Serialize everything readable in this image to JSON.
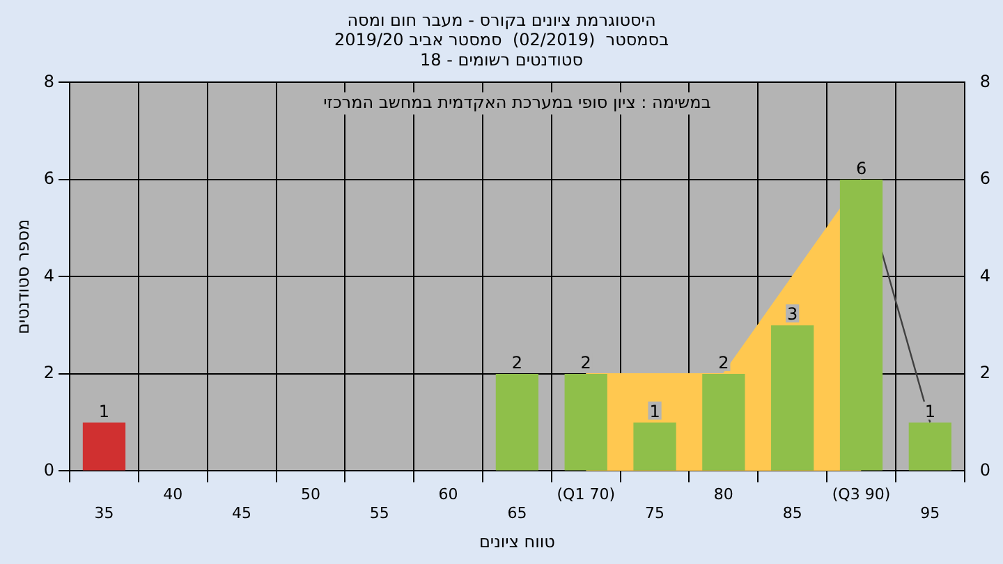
{
  "chart_data": {
    "type": "bar",
    "title": "היסטוגרמת ציונים בקורס - מעבר חום ומסה",
    "subtitle": "בסמסטר  (02/2019)  סמסטר אביב 2019/20\nסטודנטים רשומים - 18",
    "xlabel": "טווח ציונים",
    "ylabel": "מספר סטודנטים",
    "annotations": [
      "במשימה : ציון סופי במערכת האקדמית במחשב המרכזי"
    ],
    "categories": [
      "35",
      "40",
      "45",
      "50",
      "55",
      "60",
      "65",
      "(Q1 70)",
      "75",
      "80",
      "85",
      "(Q3 90)",
      "95"
    ],
    "series": [
      {
        "type": "area",
        "color": "#ffc850",
        "values": [
          null,
          null,
          null,
          null,
          null,
          null,
          null,
          2,
          2,
          2,
          4,
          6,
          null
        ]
      },
      {
        "type": "line",
        "color": "#404040",
        "values": [
          null,
          null,
          null,
          null,
          null,
          null,
          null,
          null,
          null,
          null,
          null,
          6,
          1
        ]
      },
      {
        "colors": [
          "#d03030",
          "#8fbf4a",
          "#8fbf4a",
          "#8fbf4a",
          "#8fbf4a",
          "#8fbf4a",
          "#8fbf4a",
          "#8fbf4a",
          "#8fbf4a",
          "#8fbf4a",
          "#8fbf4a",
          "#8fbf4a",
          "#8fbf4a"
        ],
        "values": [
          1,
          0,
          0,
          0,
          0,
          0,
          2,
          2,
          1,
          2,
          3,
          6,
          1
        ],
        "value_labels": [
          "1",
          null,
          null,
          null,
          null,
          null,
          "2",
          "2",
          "1",
          "2",
          "3",
          "6",
          "1"
        ]
      }
    ],
    "ylim": [
      0,
      8
    ],
    "yticks": [
      0,
      2,
      4,
      6,
      8
    ],
    "y2lim": [
      0,
      8
    ],
    "y2ticks": [
      0,
      2,
      4,
      6,
      8
    ],
    "grid": true,
    "legend": false
  }
}
